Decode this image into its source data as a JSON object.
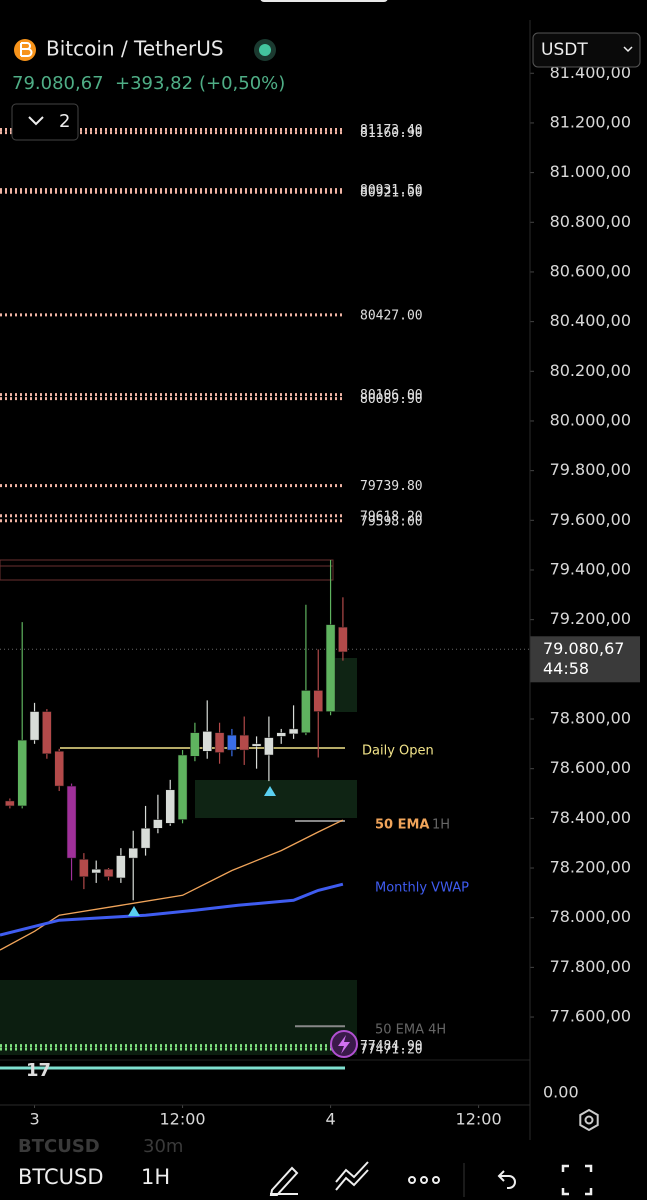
{
  "header": {
    "symbol": "Bitcoin / TetherUS",
    "price": "79.080,67",
    "change": "+393,82",
    "change_pct": "(+0,50%)",
    "indicator_count": "2",
    "currency": "USDT"
  },
  "chart_data": {
    "type": "candlestick",
    "open": [
      78470,
      78450,
      78715,
      78830,
      78670,
      78530,
      78235,
      78180,
      78195,
      78160,
      78240,
      78280,
      78360,
      78380,
      78395,
      78650,
      78670,
      78745,
      78675,
      78735,
      78690,
      78655,
      78730,
      78740,
      78745,
      78915,
      78830,
      79170
    ],
    "high": [
      78480,
      79190,
      78865,
      78840,
      78680,
      78540,
      78260,
      78230,
      78200,
      78280,
      78350,
      78450,
      78495,
      78555,
      78675,
      78785,
      78875,
      78785,
      78760,
      78810,
      78730,
      78810,
      78760,
      78855,
      79260,
      79080,
      79440,
      79290
    ],
    "low": [
      78440,
      78440,
      78700,
      78640,
      78510,
      78150,
      78115,
      78140,
      78150,
      78140,
      78070,
      78250,
      78340,
      78370,
      78380,
      78630,
      78640,
      78620,
      78650,
      78615,
      78600,
      78550,
      78700,
      78720,
      78735,
      78645,
      78815,
      79035
    ],
    "close": [
      78450,
      78715,
      78830,
      78660,
      78530,
      78240,
      78165,
      78195,
      78165,
      78250,
      78280,
      78360,
      78395,
      78515,
      78655,
      78745,
      78750,
      78665,
      78735,
      78675,
      78700,
      78725,
      78745,
      78760,
      78915,
      78830,
      79180,
      79070
    ],
    "colors": [
      "#b34a4a",
      "#5fb35f",
      "#d8dcd8",
      "#b34a4a",
      "#b34a4a",
      "#a0309a",
      "#b34a4a",
      "#d8dcd8",
      "#b34a4a",
      "#d8dcd8",
      "#d8dcd8",
      "#d8dcd8",
      "#d8dcd8",
      "#d8dcd8",
      "#5fb35f",
      "#5fb35f",
      "#d8dcd8",
      "#b34a4a",
      "#3a6ee8",
      "#b34a4a",
      "#d8dcd8",
      "#d8dcd8",
      "#d8dcd8",
      "#d8dcd8",
      "#5fb35f",
      "#b34a4a",
      "#5fb35f",
      "#b34a4a"
    ],
    "xlim": [
      -0.8,
      41.6
    ],
    "xticks": [
      {
        "value": 2,
        "label": "3"
      },
      {
        "value": 14,
        "label": "12:00"
      },
      {
        "value": 26,
        "label": "4"
      },
      {
        "value": 38,
        "label": "12:00"
      }
    ],
    "ylim": [
      77427,
      81695
    ],
    "yticks": [
      {
        "value": 81400,
        "label": "81.400,00"
      },
      {
        "value": 81200,
        "label": "81.200,00"
      },
      {
        "value": 81000,
        "label": "81.000,00"
      },
      {
        "value": 80800,
        "label": "80.800,00"
      },
      {
        "value": 80600,
        "label": "80.600,00"
      },
      {
        "value": 80400,
        "label": "80.400,00"
      },
      {
        "value": 80200,
        "label": "80.200,00"
      },
      {
        "value": 80000,
        "label": "80.000,00"
      },
      {
        "value": 79800,
        "label": "79.800,00"
      },
      {
        "value": 79600,
        "label": "79.600,00"
      },
      {
        "value": 79400,
        "label": "79.400,00"
      },
      {
        "value": 79200,
        "label": "79.200,00"
      },
      {
        "value": 79000,
        "label": "79.000,00"
      },
      {
        "value": 78800,
        "label": "78.800,00"
      },
      {
        "value": 78600,
        "label": "78.600,00"
      },
      {
        "value": 78400,
        "label": "78.400,00"
      },
      {
        "value": 78200,
        "label": "78.200,00"
      },
      {
        "value": 78000,
        "label": "78.000,00"
      },
      {
        "value": 77800,
        "label": "77.800,00"
      },
      {
        "value": 77600,
        "label": "77.600,00"
      }
    ],
    "last_price": {
      "value": 79080.67,
      "label": "79.080,67"
    },
    "countdown": "44:58",
    "levels": [
      {
        "value": 81173.4,
        "label": "81173.40",
        "color": "#f0b4a4"
      },
      {
        "value": 81160.9,
        "label": "81160.90",
        "color": "#f0b4a4"
      },
      {
        "value": 80931.5,
        "label": "80931.50",
        "color": "#f0b4a4"
      },
      {
        "value": 80921.0,
        "label": "80921.00",
        "color": "#f0b4a4"
      },
      {
        "value": 80427.0,
        "label": "80427.00",
        "color": "#f0b4a4"
      },
      {
        "value": 80106.0,
        "label": "80106.00",
        "color": "#f0b4a4"
      },
      {
        "value": 80089.9,
        "label": "80089.90",
        "color": "#f0b4a4"
      },
      {
        "value": 79739.8,
        "label": "79739.80",
        "color": "#f0b4a4"
      },
      {
        "value": 79618.2,
        "label": "79618.20",
        "color": "#f0b4a4"
      },
      {
        "value": 79598.0,
        "label": "79598.00",
        "color": "#f0b4a4"
      },
      {
        "value": 77484.9,
        "label": "77484.90",
        "color": "#7ee07e"
      },
      {
        "value": 77471.2,
        "label": "77471.20",
        "color": "#7ee07e"
      }
    ],
    "daily_open": {
      "value": 78683,
      "label": "Daily Open",
      "color": "#f2e48a"
    },
    "ema": {
      "name": "50 EMA",
      "timeframe": "1H",
      "color": "#f0a45a",
      "x": [
        -0.8,
        2,
        4,
        9,
        14,
        18,
        22,
        25,
        27
      ],
      "values": [
        77870,
        77945,
        78010,
        78050,
        78090,
        78190,
        78270,
        78345,
        78393
      ]
    },
    "vwap": {
      "name": "Monthly VWAP",
      "color": "#3f5cf0",
      "x": [
        -0.8,
        4,
        11,
        15,
        18.5,
        23,
        25,
        27
      ],
      "values": [
        77930,
        77990,
        78010,
        78030,
        78050,
        78070,
        78110,
        78135
      ]
    },
    "ema_4h": {
      "label": "50 EMA 4H",
      "value": 77563
    },
    "sub_pane_tick": "0.00"
  },
  "footer": {
    "ghost_symbol": "BTCUSD",
    "ghost_interval": "30m",
    "symbol": "BTCUSD",
    "interval": "1H"
  }
}
